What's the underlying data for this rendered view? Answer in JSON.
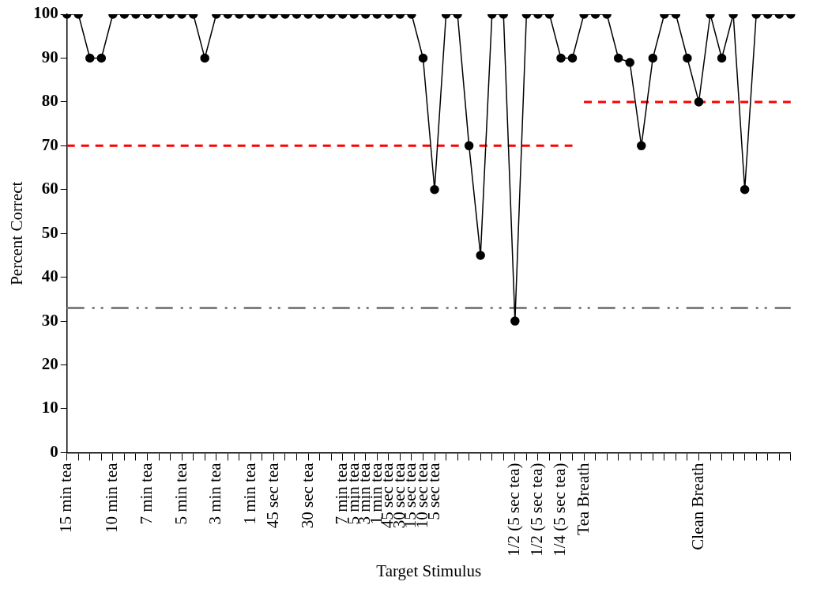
{
  "chart_data": {
    "type": "line",
    "xlabel": "Target Stimulus",
    "ylabel": "Percent Correct",
    "categories": [
      "15 min tea",
      null,
      null,
      null,
      "10 min tea",
      null,
      null,
      "7 min tea",
      null,
      null,
      "5 min tea",
      null,
      null,
      "3 min tea",
      null,
      null,
      "1 min tea",
      null,
      "45 sec tea",
      null,
      null,
      "30 sec tea",
      null,
      null,
      "7 min tea",
      "5 min tea",
      "3 min tea",
      "1 min tea",
      "45 sec tea",
      "30 sec tea",
      "15 sec tea",
      "10 sec tea",
      "5 sec tea",
      null,
      null,
      null,
      null,
      null,
      null,
      "1/2 (5 sec tea)",
      null,
      "1/2 (5 sec tea)",
      null,
      "1/4 (5 sec tea)",
      null,
      "Tea Breath",
      null,
      null,
      null,
      null,
      null,
      null,
      null,
      null,
      null,
      "Clean Breath",
      null,
      null,
      null,
      null,
      null,
      null,
      null,
      null
    ],
    "series": [
      {
        "color": "#000000",
        "marker": "circle",
        "line_style": "solid",
        "values": [
          100,
          100,
          90,
          90,
          100,
          100,
          100,
          100,
          100,
          100,
          100,
          100,
          90,
          100,
          100,
          100,
          100,
          100,
          100,
          100,
          100,
          100,
          100,
          100,
          100,
          100,
          100,
          100,
          100,
          100,
          100,
          90,
          60,
          100,
          100,
          70,
          45,
          100,
          100,
          30,
          100,
          100,
          100,
          90,
          90,
          100,
          100,
          100,
          90,
          89,
          70,
          90,
          100,
          100,
          90,
          80,
          100,
          90,
          100,
          60,
          100,
          100,
          100,
          100
        ]
      },
      {
        "color": "#ff0000",
        "marker": "none",
        "line_style": "dashed",
        "values": [
          70,
          70,
          70,
          70,
          70,
          70,
          70,
          70,
          70,
          70,
          70,
          70,
          70,
          70,
          70,
          70,
          70,
          70,
          70,
          70,
          70,
          70,
          70,
          70,
          70,
          70,
          70,
          70,
          70,
          70,
          70,
          70,
          70,
          70,
          70,
          70,
          70,
          70,
          70,
          70,
          70,
          70,
          70,
          70,
          70,
          null,
          null,
          null,
          null,
          null,
          null,
          null,
          null,
          null,
          null,
          null,
          null,
          null,
          null,
          null,
          null,
          null,
          null,
          null
        ]
      },
      {
        "color": "#ff0000",
        "marker": "none",
        "line_style": "dashed",
        "values": [
          null,
          null,
          null,
          null,
          null,
          null,
          null,
          null,
          null,
          null,
          null,
          null,
          null,
          null,
          null,
          null,
          null,
          null,
          null,
          null,
          null,
          null,
          null,
          null,
          null,
          null,
          null,
          null,
          null,
          null,
          null,
          null,
          null,
          null,
          null,
          null,
          null,
          null,
          null,
          null,
          null,
          null,
          null,
          null,
          null,
          80,
          80,
          80,
          80,
          80,
          80,
          80,
          80,
          80,
          80,
          80,
          80,
          80,
          80,
          80,
          80,
          80,
          80,
          80
        ]
      }
    ],
    "ref_lines": [
      {
        "axis": "y",
        "value": 33,
        "color": "#808080",
        "line_style": "dashdotdot"
      }
    ],
    "ylim": [
      0,
      100
    ],
    "yticks": [
      0,
      10,
      20,
      30,
      40,
      50,
      60,
      70,
      80,
      90,
      100
    ],
    "grid": false,
    "legend": false
  }
}
